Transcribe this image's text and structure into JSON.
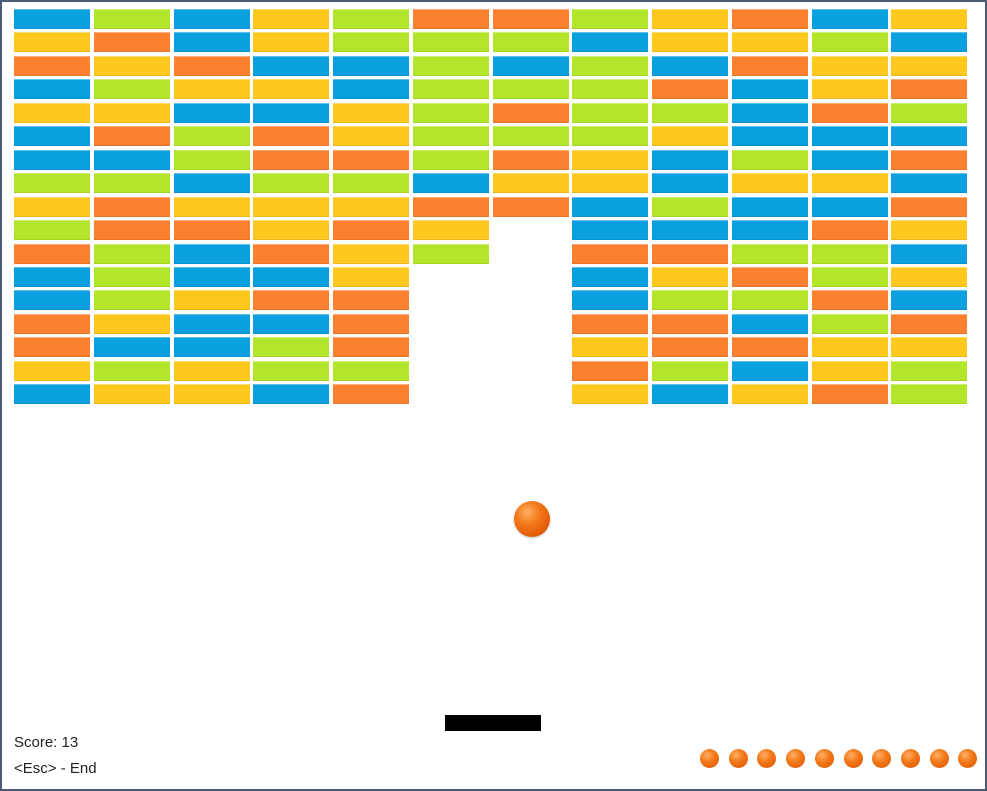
{
  "hud": {
    "score_label": "Score: 13",
    "exit_hint": "<Esc> - End"
  },
  "lives_remaining": 10,
  "palette": {
    "B": "#0aa0e0",
    "G": "#b3e52a",
    "Y": "#ffc81e",
    "O": "#fb8030"
  },
  "bricks": {
    "columns": 12,
    "grid": [
      "BGBYGOOGYOBY",
      "YOBYGGGBYYGB",
      "OYOBBGBGBOYY",
      "BGYYBGGGOBYO",
      "YYBBYGOGGBOG",
      "BOGOYGGGYBBB",
      "BBGOOGOYBGBO",
      "GGBGGBYYBYYB",
      "YOYYYOOBGBBO",
      "GOOYOY.BBBOY",
      "OGBOYG.OOGGB",
      "BGBBY..BYOGY",
      "BGYOO..BGGOB",
      "OYBBO..OOBGO",
      "OBBGO..YOOYY",
      "YGYGG..OGBYG",
      "BYYBO..YBYOG"
    ]
  }
}
